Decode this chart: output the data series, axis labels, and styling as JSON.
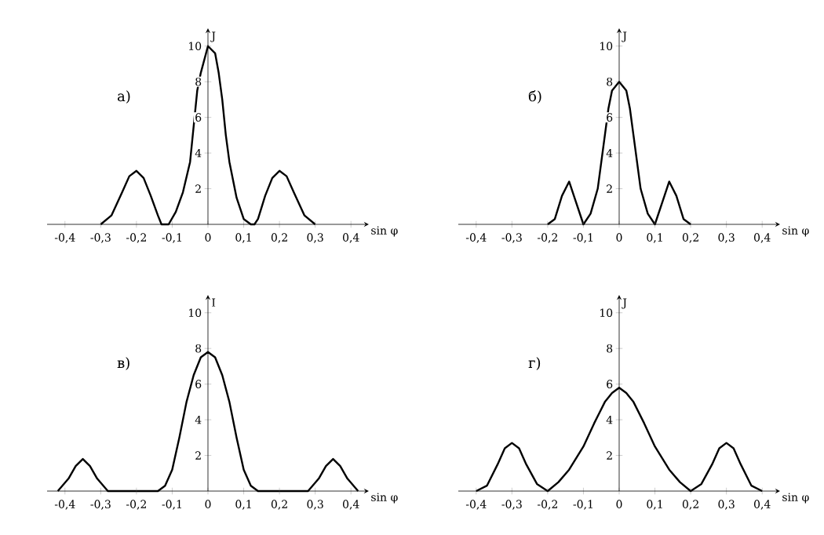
{
  "chart_data": [
    {
      "type": "line",
      "title": "а)",
      "xlabel": "sin φ",
      "ylabel": "J",
      "xlim": [
        -0.45,
        0.45
      ],
      "ylim": [
        0,
        11
      ],
      "xticks": [
        {
          "value": -0.4,
          "label": "-0,4"
        },
        {
          "value": -0.3,
          "label": "-0,3"
        },
        {
          "value": -0.2,
          "label": "-0,2"
        },
        {
          "value": -0.1,
          "label": "-0,1"
        },
        {
          "value": 0,
          "label": "0"
        },
        {
          "value": 0.1,
          "label": "0,1"
        },
        {
          "value": 0.2,
          "label": "0,2"
        },
        {
          "value": 0.3,
          "label": "0,3"
        },
        {
          "value": 0.4,
          "label": "0,4"
        }
      ],
      "yticks": [
        2,
        4,
        6,
        8,
        10
      ],
      "x": [
        -0.3,
        -0.27,
        -0.24,
        -0.22,
        -0.2,
        -0.18,
        -0.16,
        -0.14,
        -0.13,
        -0.11,
        -0.09,
        -0.07,
        -0.05,
        -0.04,
        -0.03,
        -0.02,
        0,
        0.02,
        0.03,
        0.04,
        0.05,
        0.06,
        0.08,
        0.1,
        0.12,
        0.13,
        0.14,
        0.16,
        0.18,
        0.2,
        0.22,
        0.24,
        0.27,
        0.3
      ],
      "series": [
        {
          "color": "#000000",
          "values": [
            0,
            0.5,
            1.8,
            2.7,
            3,
            2.6,
            1.6,
            0.5,
            0,
            0,
            0.7,
            1.8,
            3.5,
            5.5,
            7.5,
            8.5,
            10,
            9.6,
            8.5,
            7,
            5,
            3.5,
            1.5,
            0.3,
            0,
            0,
            0.3,
            1.6,
            2.6,
            3,
            2.7,
            1.8,
            0.5,
            0
          ]
        }
      ]
    },
    {
      "type": "line",
      "title": "б)",
      "xlabel": "sin φ",
      "ylabel": "J",
      "xlim": [
        -0.45,
        0.45
      ],
      "ylim": [
        0,
        11
      ],
      "xticks": [
        {
          "value": -0.4,
          "label": "-0,4"
        },
        {
          "value": -0.3,
          "label": "-0,3"
        },
        {
          "value": -0.2,
          "label": "-0,2"
        },
        {
          "value": -0.1,
          "label": "-0,1"
        },
        {
          "value": 0,
          "label": "0"
        },
        {
          "value": 0.1,
          "label": "0,1"
        },
        {
          "value": 0.2,
          "label": "0,2"
        },
        {
          "value": 0.3,
          "label": "0,3"
        },
        {
          "value": 0.4,
          "label": "0,4"
        }
      ],
      "yticks": [
        2,
        4,
        6,
        8,
        10
      ],
      "x": [
        -0.2,
        -0.18,
        -0.16,
        -0.14,
        -0.12,
        -0.1,
        -0.08,
        -0.06,
        -0.04,
        -0.03,
        -0.02,
        0,
        0.02,
        0.03,
        0.04,
        0.06,
        0.08,
        0.1,
        0.12,
        0.14,
        0.16,
        0.18,
        0.2
      ],
      "series": [
        {
          "color": "#000000",
          "values": [
            0,
            0.3,
            1.6,
            2.4,
            1.2,
            0,
            0.6,
            2,
            5,
            6.5,
            7.5,
            8,
            7.5,
            6.5,
            5,
            2,
            0.6,
            0,
            1.2,
            2.4,
            1.6,
            0.3,
            0
          ]
        }
      ]
    },
    {
      "type": "line",
      "title": "в)",
      "xlabel": "sin φ",
      "ylabel": "I",
      "xlim": [
        -0.45,
        0.45
      ],
      "ylim": [
        0,
        11
      ],
      "xticks": [
        {
          "value": -0.4,
          "label": "-0,4"
        },
        {
          "value": -0.3,
          "label": "-0,3"
        },
        {
          "value": -0.2,
          "label": "-0,2"
        },
        {
          "value": -0.1,
          "label": "-0,1"
        },
        {
          "value": 0,
          "label": "0"
        },
        {
          "value": 0.1,
          "label": "0,1"
        },
        {
          "value": 0.2,
          "label": "0,2"
        },
        {
          "value": 0.3,
          "label": "0,3"
        },
        {
          "value": 0.4,
          "label": "0,4"
        }
      ],
      "yticks": [
        2,
        4,
        6,
        8,
        10
      ],
      "x": [
        -0.42,
        -0.39,
        -0.37,
        -0.35,
        -0.33,
        -0.31,
        -0.28,
        -0.14,
        -0.12,
        -0.1,
        -0.08,
        -0.06,
        -0.04,
        -0.02,
        0,
        0.02,
        0.04,
        0.06,
        0.08,
        0.1,
        0.12,
        0.14,
        0.28,
        0.31,
        0.33,
        0.35,
        0.37,
        0.39,
        0.42
      ],
      "series": [
        {
          "color": "#000000",
          "values": [
            0,
            0.7,
            1.4,
            1.8,
            1.4,
            0.7,
            0,
            0,
            0.3,
            1.2,
            3,
            5,
            6.5,
            7.5,
            7.8,
            7.5,
            6.5,
            5,
            3,
            1.2,
            0.3,
            0,
            0,
            0.7,
            1.4,
            1.8,
            1.4,
            0.7,
            0
          ]
        }
      ]
    },
    {
      "type": "line",
      "title": "г)",
      "xlabel": "sin φ",
      "ylabel": "J",
      "xlim": [
        -0.45,
        0.45
      ],
      "ylim": [
        0,
        11
      ],
      "xticks": [
        {
          "value": -0.4,
          "label": "-0,4"
        },
        {
          "value": -0.3,
          "label": "-0,3"
        },
        {
          "value": -0.2,
          "label": "-0,2"
        },
        {
          "value": -0.1,
          "label": "-0,1"
        },
        {
          "value": 0,
          "label": "0"
        },
        {
          "value": 0.1,
          "label": "0,1"
        },
        {
          "value": 0.2,
          "label": "0,2"
        },
        {
          "value": 0.3,
          "label": "0,3"
        },
        {
          "value": 0.4,
          "label": "0,4"
        }
      ],
      "yticks": [
        2,
        4,
        6,
        8,
        10
      ],
      "x": [
        -0.4,
        -0.37,
        -0.34,
        -0.32,
        -0.3,
        -0.28,
        -0.26,
        -0.23,
        -0.2,
        -0.17,
        -0.14,
        -0.1,
        -0.07,
        -0.04,
        -0.02,
        0,
        0.02,
        0.04,
        0.07,
        0.1,
        0.14,
        0.17,
        0.2,
        0.23,
        0.26,
        0.28,
        0.3,
        0.32,
        0.34,
        0.37,
        0.4
      ],
      "series": [
        {
          "color": "#000000",
          "values": [
            0,
            0.3,
            1.5,
            2.4,
            2.7,
            2.4,
            1.5,
            0.4,
            0,
            0.5,
            1.2,
            2.5,
            3.8,
            5,
            5.5,
            5.8,
            5.5,
            5,
            3.8,
            2.5,
            1.2,
            0.5,
            0,
            0.4,
            1.5,
            2.4,
            2.7,
            2.4,
            1.5,
            0.3,
            0
          ]
        }
      ]
    }
  ]
}
